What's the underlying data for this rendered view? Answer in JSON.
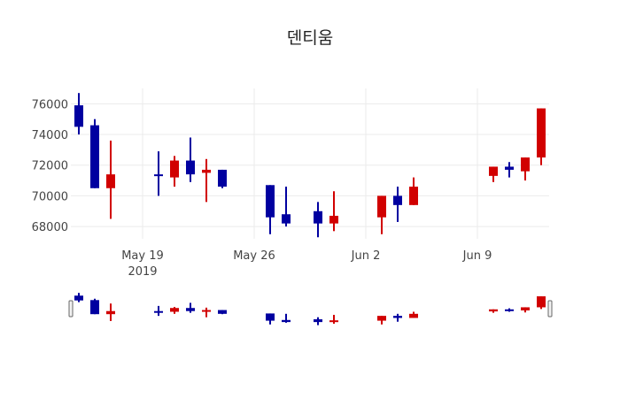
{
  "chart_data": {
    "type": "candlestick",
    "title": "덴티움",
    "xlabel": "",
    "ylabel": "",
    "ylim": [
      67200,
      77000
    ],
    "yticks": [
      68000,
      70000,
      72000,
      74000,
      76000
    ],
    "xticks": [
      {
        "label": "May 19",
        "sub": "2019",
        "date": "2019-05-19"
      },
      {
        "label": "May 26",
        "sub": "",
        "date": "2019-05-26"
      },
      {
        "label": "Jun 2",
        "sub": "",
        "date": "2019-06-02"
      },
      {
        "label": "Jun 9",
        "sub": "",
        "date": "2019-06-09"
      }
    ],
    "increasing_color": "#d10000",
    "decreasing_color": "#0000a0",
    "grid": true,
    "range_slider": true,
    "series": [
      {
        "date": "2019-05-15",
        "open": 75900,
        "high": 76700,
        "low": 74000,
        "close": 74500
      },
      {
        "date": "2019-05-16",
        "open": 74600,
        "high": 75000,
        "low": 70500,
        "close": 70500
      },
      {
        "date": "2019-05-17",
        "open": 70500,
        "high": 73600,
        "low": 68500,
        "close": 71400
      },
      {
        "date": "2019-05-20",
        "open": 71400,
        "high": 72900,
        "low": 70000,
        "close": 71300
      },
      {
        "date": "2019-05-21",
        "open": 71200,
        "high": 72600,
        "low": 70600,
        "close": 72300
      },
      {
        "date": "2019-05-22",
        "open": 72300,
        "high": 73800,
        "low": 70900,
        "close": 71400
      },
      {
        "date": "2019-05-23",
        "open": 71500,
        "high": 72400,
        "low": 69600,
        "close": 71700
      },
      {
        "date": "2019-05-24",
        "open": 71700,
        "high": 71700,
        "low": 70500,
        "close": 70600
      },
      {
        "date": "2019-05-27",
        "open": 70700,
        "high": 70700,
        "low": 67500,
        "close": 68600
      },
      {
        "date": "2019-05-28",
        "open": 68800,
        "high": 70600,
        "low": 68000,
        "close": 68200
      },
      {
        "date": "2019-05-30",
        "open": 69000,
        "high": 69600,
        "low": 67300,
        "close": 68200
      },
      {
        "date": "2019-05-31",
        "open": 68200,
        "high": 70300,
        "low": 67700,
        "close": 68700
      },
      {
        "date": "2019-06-03",
        "open": 68600,
        "high": 70000,
        "low": 67500,
        "close": 70000
      },
      {
        "date": "2019-06-04",
        "open": 70000,
        "high": 70600,
        "low": 68300,
        "close": 69400
      },
      {
        "date": "2019-06-05",
        "open": 69400,
        "high": 71200,
        "low": 69400,
        "close": 70600
      },
      {
        "date": "2019-06-10",
        "open": 71300,
        "high": 71900,
        "low": 70900,
        "close": 71900
      },
      {
        "date": "2019-06-11",
        "open": 71900,
        "high": 72200,
        "low": 71200,
        "close": 71700
      },
      {
        "date": "2019-06-12",
        "open": 71600,
        "high": 72500,
        "low": 71000,
        "close": 72500
      },
      {
        "date": "2019-06-13",
        "open": 72500,
        "high": 75700,
        "low": 72000,
        "close": 75700
      }
    ]
  }
}
